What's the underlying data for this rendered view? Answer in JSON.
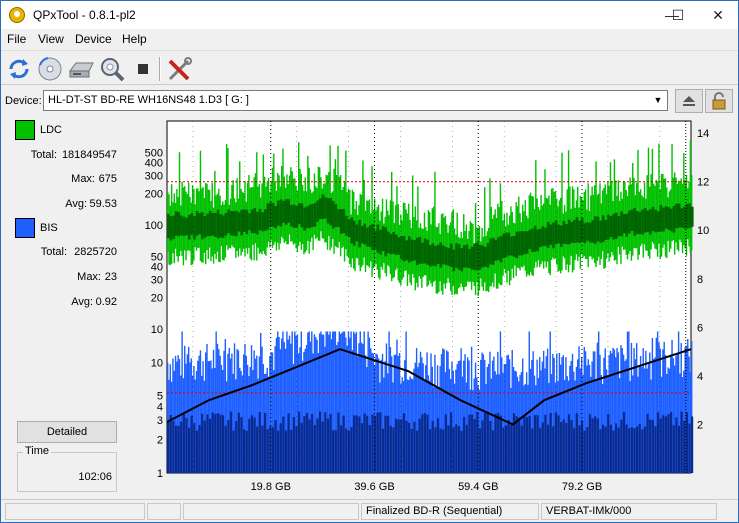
{
  "window": {
    "title": "QPxTool - 0.8.1-pl2",
    "minimize_glyph": "—",
    "maximize_glyph": "☐",
    "close_glyph": "✕"
  },
  "menu": {
    "items": [
      {
        "label": "File"
      },
      {
        "label": "View"
      },
      {
        "label": "Device"
      },
      {
        "label": "Help"
      }
    ]
  },
  "toolbar": {
    "icons": [
      "refresh-icon",
      "disc-scan-icon",
      "drive-icon",
      "magnifier-icon",
      "stop-icon",
      "tools-icon"
    ]
  },
  "device": {
    "label": "Device:",
    "selected": "HL-DT-ST BD-RE  WH16NS48  1.D3 [ G: ]"
  },
  "stats": {
    "ldc": {
      "name": "LDC",
      "color": "#00c000",
      "total_label": "Total:",
      "total": "181849547",
      "max_label": "Max:",
      "max": "675",
      "avg_label": "Avg:",
      "avg": "59.53"
    },
    "bis": {
      "name": "BIS",
      "color": "#1e5fff",
      "total_label": "Total:",
      "total": "2825720",
      "max_label": "Max:",
      "max": "23",
      "avg_label": "Avg:",
      "avg": "0.92"
    },
    "detailed_label": "Detailed",
    "time_label": "Time",
    "time_value": "102:06"
  },
  "status": {
    "disc_type": "Finalized BD-R (Sequential)",
    "media_id": "VERBAT-IMk/000"
  },
  "chart_data": {
    "type": "area",
    "x_ticks": [
      "19.8 GB",
      "39.6 GB",
      "59.4 GB",
      "79.2 GB"
    ],
    "x_tick_values": [
      19.8,
      39.6,
      59.4,
      79.2
    ],
    "x_range": [
      0,
      100
    ],
    "upper": {
      "scale": "log",
      "y_ticks": [
        "500",
        "400",
        "300",
        "200",
        "100",
        "50",
        "40",
        "30",
        "20",
        "10"
      ],
      "y_tick_values": [
        500,
        400,
        300,
        200,
        100,
        50,
        40,
        30,
        20,
        10
      ],
      "y_range": [
        10,
        1000
      ],
      "ldc_max_color": "#00c000",
      "ldc_avg_color": "#006400",
      "ldc_avg": [
        [
          0,
          100
        ],
        [
          10,
          105
        ],
        [
          18,
          115
        ],
        [
          22,
          140
        ],
        [
          26,
          125
        ],
        [
          30,
          150
        ],
        [
          35,
          90
        ],
        [
          40,
          75
        ],
        [
          45,
          62
        ],
        [
          50,
          55
        ],
        [
          55,
          50
        ],
        [
          60,
          52
        ],
        [
          63,
          60
        ],
        [
          67,
          70
        ],
        [
          72,
          80
        ],
        [
          78,
          88
        ],
        [
          84,
          95
        ],
        [
          88,
          110
        ],
        [
          92,
          115
        ],
        [
          96,
          120
        ],
        [
          100,
          125
        ]
      ],
      "ldc_max": [
        [
          0,
          200
        ],
        [
          10,
          210
        ],
        [
          18,
          250
        ],
        [
          22,
          300
        ],
        [
          26,
          260
        ],
        [
          30,
          320
        ],
        [
          35,
          180
        ],
        [
          40,
          150
        ],
        [
          45,
          130
        ],
        [
          50,
          120
        ],
        [
          55,
          110
        ],
        [
          58,
          90
        ],
        [
          60,
          100
        ],
        [
          63,
          130
        ],
        [
          67,
          150
        ],
        [
          72,
          170
        ],
        [
          78,
          190
        ],
        [
          84,
          200
        ],
        [
          88,
          230
        ],
        [
          92,
          240
        ],
        [
          96,
          250
        ],
        [
          100,
          260
        ]
      ]
    },
    "lower": {
      "scale": "log",
      "y_ticks": [
        "10",
        "5",
        "4",
        "3",
        "2",
        "1"
      ],
      "y_tick_values": [
        10,
        5,
        4,
        3,
        2,
        1
      ],
      "y_range": [
        1,
        20
      ],
      "bis_color": "#1e5fff",
      "bis_dark_color": "#0a2a8c",
      "bis_level": [
        [
          0,
          10
        ],
        [
          20,
          12
        ],
        [
          33,
          22
        ],
        [
          40,
          11
        ],
        [
          60,
          9
        ],
        [
          80,
          10
        ],
        [
          100,
          12
        ]
      ],
      "speed_line_color": "#000000"
    },
    "right_axis": {
      "y_ticks": [
        "14",
        "12",
        "10",
        "8",
        "6",
        "4",
        "2"
      ],
      "y_tick_values": [
        14,
        12,
        10,
        8,
        6,
        4,
        2
      ],
      "y_range": [
        0,
        14.5
      ]
    },
    "speed": [
      [
        0,
        2.1
      ],
      [
        8,
        3
      ],
      [
        16,
        3.6
      ],
      [
        24,
        4.3
      ],
      [
        33,
        5.1
      ],
      [
        46,
        4.2
      ],
      [
        56,
        3.0
      ],
      [
        66,
        2.0
      ],
      [
        72,
        3.0
      ],
      [
        80,
        3.7
      ],
      [
        90,
        4.4
      ],
      [
        100,
        5.1
      ]
    ]
  }
}
